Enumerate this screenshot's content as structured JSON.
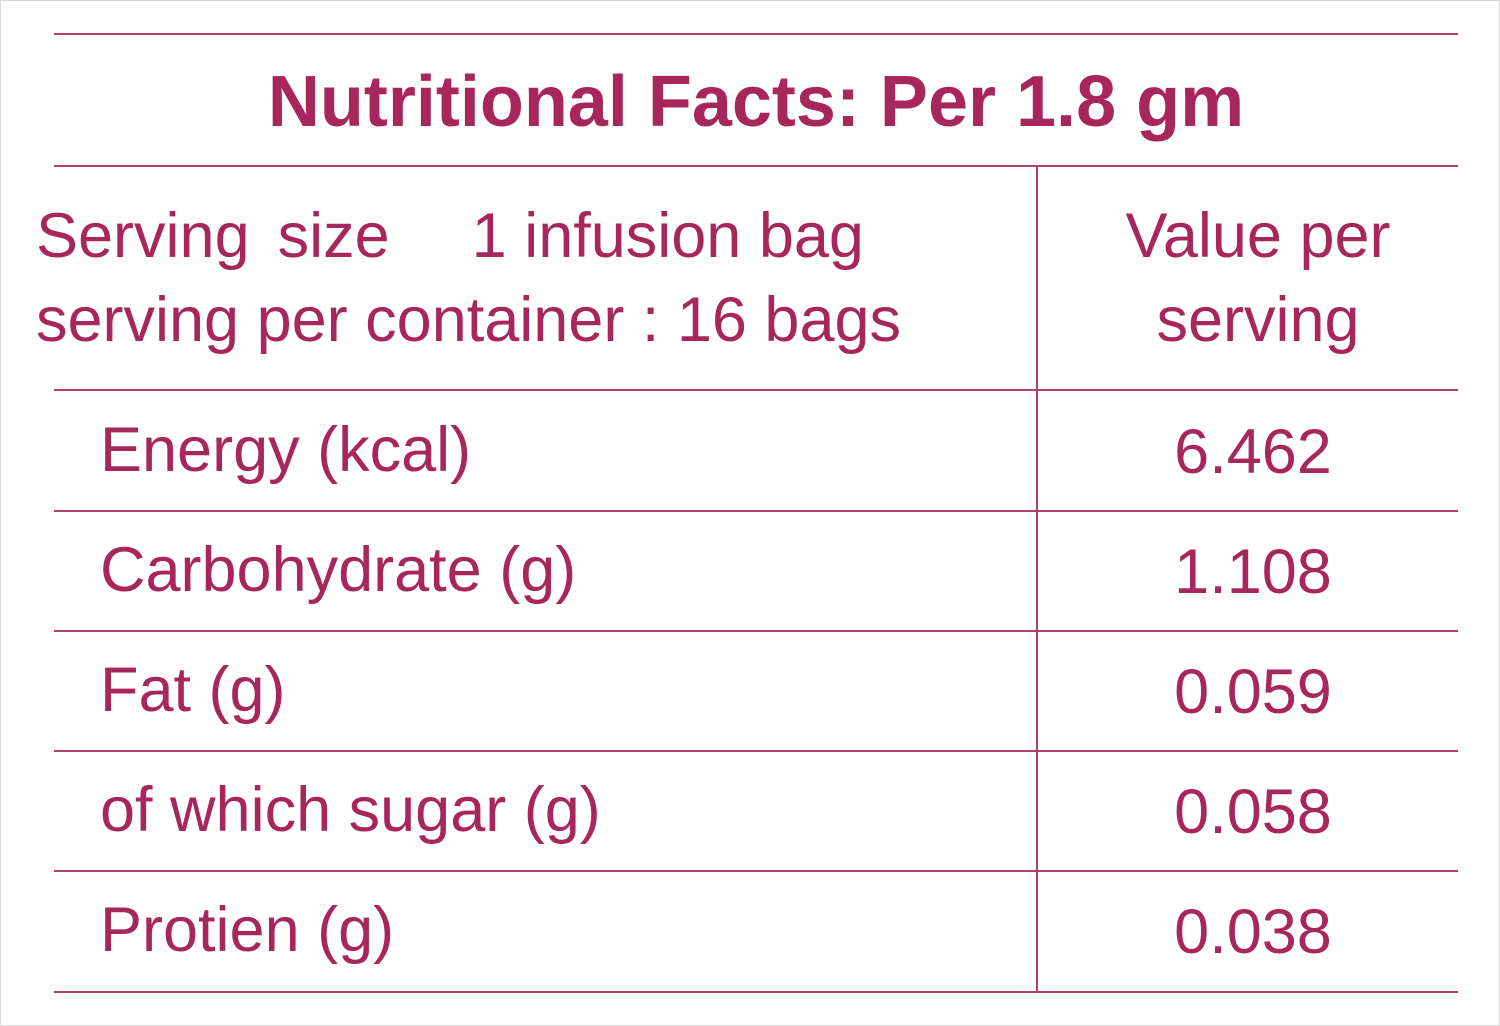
{
  "title": "Nutritional Facts: Per 1.8 gm",
  "serving": {
    "size_label": "Serving",
    "size_word": "size",
    "size_value": "1 infusion bag",
    "per_container": "serving per container : 16 bags"
  },
  "value_header": {
    "line1": "Value per",
    "line2": "serving"
  },
  "rows": [
    {
      "nutrient": "Energy (kcal)",
      "value": "6.462"
    },
    {
      "nutrient": "Carbohydrate (g)",
      "value": "1.108"
    },
    {
      "nutrient": "Fat (g)",
      "value": "0.059"
    },
    {
      "nutrient": "of which sugar (g)",
      "value": "0.058"
    },
    {
      "nutrient": "Protien (g)",
      "value": "0.038"
    }
  ],
  "colors": {
    "text": "#a8275a",
    "rule": "#b0416d",
    "background": "#ffffff"
  }
}
